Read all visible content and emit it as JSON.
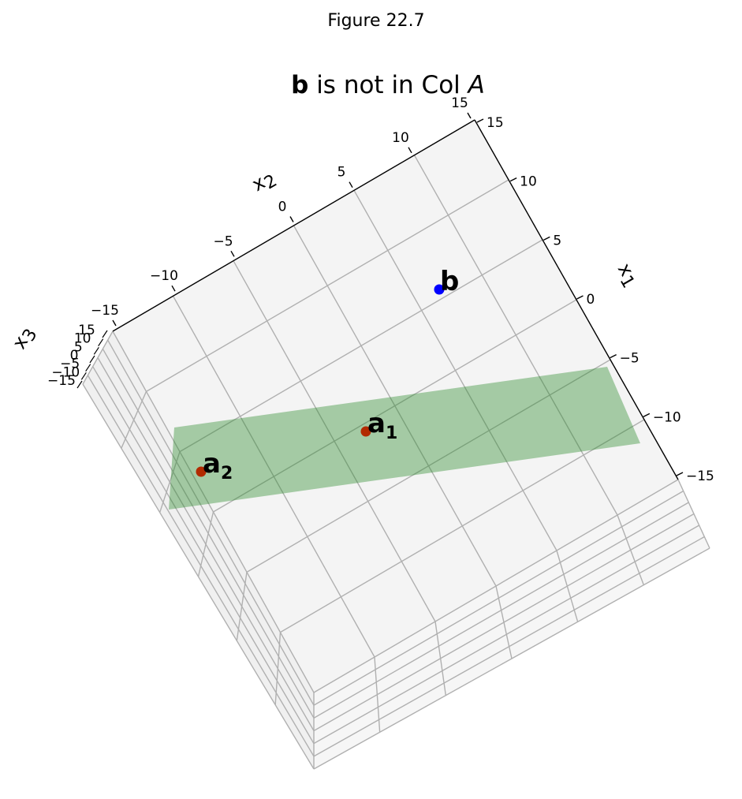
{
  "figure": {
    "suptitle": "Figure 22.7"
  },
  "chart_data": {
    "type": "scatter",
    "projection": "3d",
    "title_bold": "b",
    "title_rest": " is not in Col ",
    "title_italic": "A",
    "axes": {
      "x1": {
        "label": "x",
        "sub": "1",
        "ticks": [
          "15",
          "10",
          "5",
          "0",
          "−5",
          "−10",
          "−15"
        ],
        "range": [
          -15,
          15
        ]
      },
      "x2": {
        "label": "x",
        "sub": "2",
        "ticks": [
          "−15",
          "−10",
          "−5",
          "0",
          "5",
          "10",
          "15"
        ],
        "range": [
          -15,
          15
        ]
      },
      "x3": {
        "label": "x",
        "sub": "3",
        "ticks": [
          "15",
          "10",
          "5",
          "0",
          "−5",
          "−10",
          "−15"
        ],
        "range": [
          -15,
          15
        ]
      }
    },
    "points": [
      {
        "name": "a",
        "sub": "1",
        "color": "#b22a00"
      },
      {
        "name": "a",
        "sub": "2",
        "color": "#b22a00"
      },
      {
        "name": "b",
        "sub": "",
        "color": "#0000ff"
      }
    ],
    "plane": {
      "color": "#2e8b2e",
      "opacity": 0.4
    },
    "grid": true,
    "pane_color": "#f2f2f2"
  }
}
